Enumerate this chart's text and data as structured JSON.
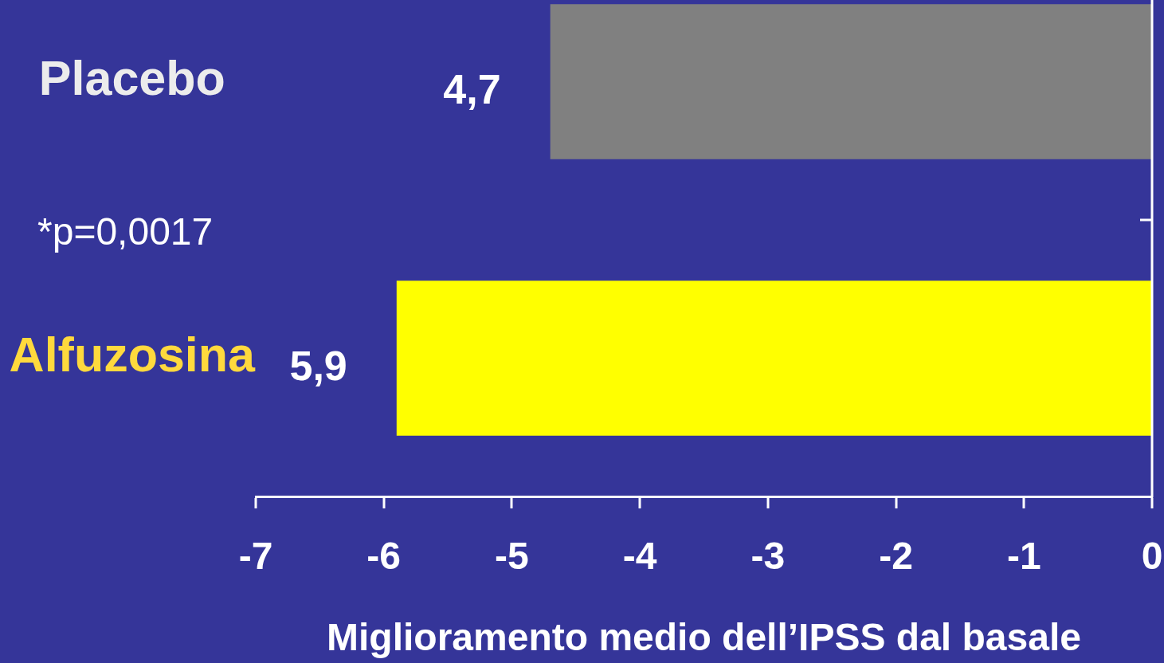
{
  "chart_data": {
    "type": "bar",
    "orientation": "horizontal",
    "categories": [
      "Placebo",
      "Alfuzosina"
    ],
    "values": [
      -4.7,
      -5.9
    ],
    "colors": [
      "#808080",
      "#ffff00"
    ],
    "xlabel": "Miglioramento medio dell’IPSS dal basale",
    "xlim": [
      -7,
      0
    ],
    "xticks": [
      -7,
      -6,
      -5,
      -4,
      -3,
      -2,
      -1,
      0
    ],
    "annotations": [
      {
        "text": "4,7",
        "x": -4.7,
        "y": "Placebo"
      },
      {
        "text": "5,9",
        "x": -5.9,
        "y": "Alfuzosina"
      },
      "*p=0,0017"
    ]
  }
}
